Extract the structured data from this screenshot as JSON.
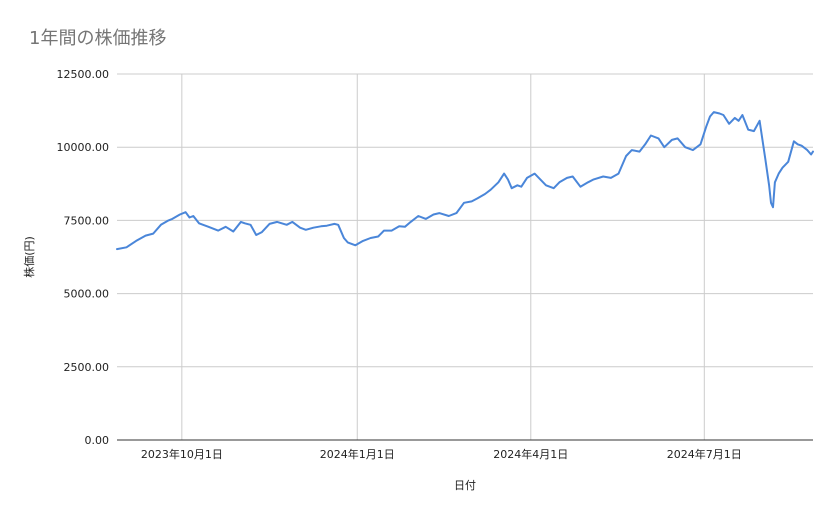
{
  "chart_data": {
    "type": "line",
    "title": "1年間の株価推移",
    "xlabel": "日付",
    "ylabel": "株価(円)",
    "ylim": [
      0,
      12500
    ],
    "yticks": [
      0,
      2500,
      5000,
      7500,
      10000,
      12500
    ],
    "ytick_labels": [
      "0.00",
      "2500.00",
      "5000.00",
      "7500.00",
      "10000.00",
      "12500.00"
    ],
    "xlim": [
      "2023-08-28",
      "2024-08-27"
    ],
    "xticks": [
      "2023-10-01",
      "2024-01-01",
      "2024-04-01",
      "2024-07-01"
    ],
    "xtick_labels": [
      "2023年10月1日",
      "2024年1月1日",
      "2024年4月1日",
      "2024年7月1日"
    ],
    "grid": true,
    "colors": {
      "line": "#4a86d9",
      "grid": "#cccccc",
      "axis": "#333333",
      "title": "#757575",
      "text": "#222222"
    },
    "series": [
      {
        "x": [
          "2023-08-28",
          "2023-09-02",
          "2023-09-07",
          "2023-09-12",
          "2023-09-16",
          "2023-09-20",
          "2023-09-24",
          "2023-09-26",
          "2023-09-30",
          "2023-10-03",
          "2023-10-05",
          "2023-10-07",
          "2023-10-10",
          "2023-10-15",
          "2023-10-20",
          "2023-10-24",
          "2023-10-28",
          "2023-11-01",
          "2023-11-03",
          "2023-11-06",
          "2023-11-09",
          "2023-11-12",
          "2023-11-16",
          "2023-11-20",
          "2023-11-25",
          "2023-11-28",
          "2023-12-02",
          "2023-12-05",
          "2023-12-09",
          "2023-12-13",
          "2023-12-16",
          "2023-12-20",
          "2023-12-22",
          "2023-12-25",
          "2023-12-27",
          "2023-12-31",
          "2024-01-04",
          "2024-01-08",
          "2024-01-12",
          "2024-01-15",
          "2024-01-19",
          "2024-01-23",
          "2024-01-26",
          "2024-01-29",
          "2024-02-02",
          "2024-02-06",
          "2024-02-10",
          "2024-02-13",
          "2024-02-18",
          "2024-02-22",
          "2024-02-26",
          "2024-03-01",
          "2024-03-04",
          "2024-03-08",
          "2024-03-11",
          "2024-03-15",
          "2024-03-18",
          "2024-03-20",
          "2024-03-22",
          "2024-03-25",
          "2024-03-27",
          "2024-03-30",
          "2024-04-03",
          "2024-04-06",
          "2024-04-09",
          "2024-04-13",
          "2024-04-16",
          "2024-04-20",
          "2024-04-23",
          "2024-04-27",
          "2024-05-01",
          "2024-05-04",
          "2024-05-09",
          "2024-05-13",
          "2024-05-17",
          "2024-05-21",
          "2024-05-24",
          "2024-05-28",
          "2024-05-31",
          "2024-06-03",
          "2024-06-07",
          "2024-06-10",
          "2024-06-14",
          "2024-06-17",
          "2024-06-21",
          "2024-06-25",
          "2024-06-29",
          "2024-07-02",
          "2024-07-04",
          "2024-07-06",
          "2024-07-09",
          "2024-07-11",
          "2024-07-14",
          "2024-07-17",
          "2024-07-19",
          "2024-07-21",
          "2024-07-24",
          "2024-07-27",
          "2024-07-30",
          "2024-08-02",
          "2024-08-04",
          "2024-08-05",
          "2024-08-06",
          "2024-08-07",
          "2024-08-09",
          "2024-08-11",
          "2024-08-14",
          "2024-08-17",
          "2024-08-19",
          "2024-08-21",
          "2024-08-24",
          "2024-08-26",
          "2024-08-27"
        ],
        "y": [
          6520,
          6580,
          6800,
          6980,
          7050,
          7350,
          7500,
          7550,
          7700,
          7780,
          7600,
          7650,
          7400,
          7280,
          7150,
          7280,
          7120,
          7450,
          7400,
          7350,
          7000,
          7100,
          7380,
          7450,
          7350,
          7450,
          7250,
          7180,
          7250,
          7300,
          7320,
          7380,
          7350,
          6900,
          6750,
          6650,
          6800,
          6900,
          6950,
          7150,
          7150,
          7300,
          7280,
          7450,
          7650,
          7550,
          7700,
          7750,
          7650,
          7750,
          8100,
          8150,
          8250,
          8400,
          8550,
          8800,
          9100,
          8900,
          8600,
          8700,
          8650,
          8950,
          9100,
          8900,
          8700,
          8600,
          8800,
          8950,
          9000,
          8650,
          8800,
          8900,
          9000,
          8950,
          9100,
          9700,
          9900,
          9850,
          10100,
          10400,
          10300,
          10000,
          10250,
          10300,
          10000,
          9900,
          10100,
          10700,
          11050,
          11200,
          11150,
          11100,
          10800,
          11000,
          10900,
          11100,
          10600,
          10550,
          10900,
          9600,
          8700,
          8100,
          7950,
          8800,
          9100,
          9300,
          9500,
          10200,
          10100,
          10050,
          9900,
          9750,
          9850
        ]
      }
    ]
  }
}
